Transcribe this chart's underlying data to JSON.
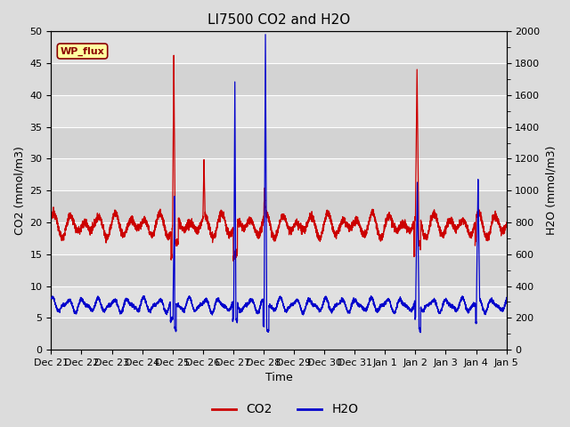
{
  "title": "LI7500 CO2 and H2O",
  "xlabel": "Time",
  "ylabel_left": "CO2 (mmol/m3)",
  "ylabel_right": "H2O (mmol/m3)",
  "ylim_left": [
    0,
    50
  ],
  "ylim_right": [
    0,
    2000
  ],
  "yticks_left": [
    0,
    5,
    10,
    15,
    20,
    25,
    30,
    35,
    40,
    45,
    50
  ],
  "yticks_right": [
    0,
    200,
    400,
    600,
    800,
    1000,
    1200,
    1400,
    1600,
    1800,
    2000
  ],
  "co2_color": "#cc0000",
  "h2o_color": "#0000cc",
  "fig_bg_color": "#dcdcdc",
  "plot_bg_color": "#e0e0e0",
  "grid_color": "#ffffff",
  "annotation_text": "WP_flux",
  "tick_labels": [
    "Dec 21",
    "Dec 22",
    "Dec 23",
    "Dec 24",
    "Dec 25",
    "Dec 26",
    "Dec 27",
    "Dec 28",
    "Dec 29",
    "Dec 30",
    "Dec 31",
    "Jan 1",
    "Jan 2",
    "Jan 3",
    "Jan 4",
    "Jan 5"
  ],
  "title_fontsize": 11,
  "axis_fontsize": 9,
  "tick_fontsize": 8,
  "legend_fontsize": 10
}
